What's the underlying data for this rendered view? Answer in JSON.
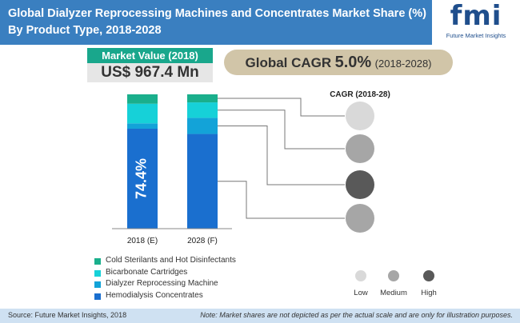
{
  "header": {
    "title_line1": "Global Dialyzer Reprocessing Machines and Concentrates Market Share (%)",
    "title_line2": "By Product Type, 2018-2028"
  },
  "logo": {
    "text": "fmi",
    "tagline": "Future Market Insights"
  },
  "market_value": {
    "label": "Market Value (2018)",
    "value": "US$ 967.4 Mn"
  },
  "global_cagr": {
    "label": "Global CAGR",
    "value": "5.0%",
    "period": "(2018-2028)"
  },
  "cagr_panel": {
    "title": "CAGR (2018-28)",
    "circles": [
      {
        "level": "Low",
        "color": "#d9d9d9"
      },
      {
        "level": "Medium",
        "color": "#a6a6a6"
      },
      {
        "level": "High",
        "color": "#595959"
      },
      {
        "level": "Medium",
        "color": "#a6a6a6"
      }
    ],
    "legend": [
      {
        "label": "Low",
        "color": "#d9d9d9"
      },
      {
        "label": "Medium",
        "color": "#a6a6a6"
      },
      {
        "label": "High",
        "color": "#595959"
      }
    ]
  },
  "chart_data": {
    "type": "bar",
    "stacked": true,
    "categories": [
      "2018 (E)",
      "2028 (F)"
    ],
    "series": [
      {
        "name": "Hemodialysis Concentrates",
        "color": "#1a6fcf",
        "values": [
          74.4,
          70.5
        ]
      },
      {
        "name": "Dialyzer Reprocessing Machine",
        "color": "#13a3d8",
        "values": [
          4.0,
          12.0
        ]
      },
      {
        "name": "Bicarbonate Cartridges",
        "color": "#16d1d8",
        "values": [
          14.6,
          11.5
        ]
      },
      {
        "name": "Cold Sterilants and Hot Disinfectants",
        "color": "#1aaf8c",
        "values": [
          7.0,
          6.0
        ]
      }
    ],
    "data_labels": [
      {
        "category": "2018 (E)",
        "series": "Hemodialysis Concentrates",
        "text": "74.4%"
      }
    ],
    "ylim": [
      0,
      100
    ],
    "legend_position": "bottom-left"
  },
  "footer": {
    "source": "Source: Future Market Insights, 2018",
    "note": "Note: Market shares are not depicted as per the actual scale and are only for illustration purposes."
  }
}
